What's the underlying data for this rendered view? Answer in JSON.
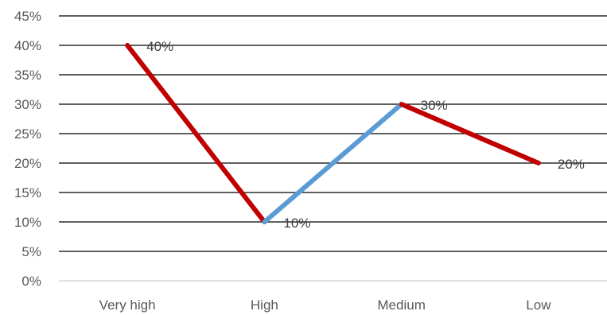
{
  "chart_data": {
    "type": "line",
    "categories": [
      "Very high",
      "High",
      "Medium",
      "Low"
    ],
    "series": [
      {
        "values": [
          40,
          10,
          30,
          20
        ],
        "data_labels": [
          "40%",
          "10%",
          "30%",
          "20%"
        ],
        "color": "#C00000",
        "segment_colors": [
          "#C00000",
          "#5B9BD5",
          "#C00000"
        ]
      }
    ],
    "yticks": [
      "0%",
      "5%",
      "10%",
      "15%",
      "20%",
      "25%",
      "30%",
      "35%",
      "40%",
      "45%"
    ],
    "ylim": [
      0,
      45
    ],
    "ystep": 5,
    "title": "",
    "xlabel": "",
    "ylabel": "",
    "grid": true,
    "legend": "none",
    "colors": {
      "gridline": "#000000",
      "axis": "#D9D9D9",
      "tick_text": "#595959",
      "label_text": "#404040"
    }
  }
}
